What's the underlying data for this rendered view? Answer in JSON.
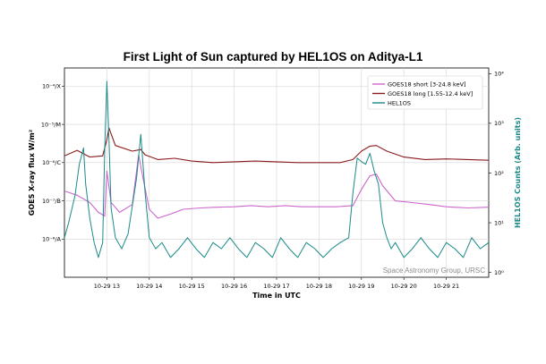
{
  "chart_data": {
    "type": "line",
    "title": "First Light of Sun captured by HEL1OS on Aditya-L1",
    "xlabel": "Time in UTC",
    "ylabel_left": "GOES X-ray flux W/m²",
    "ylabel_right": "HEL1OS Counts (Arb. units)",
    "x_ticks": [
      "10-29 13",
      "10-29 14",
      "10-29 15",
      "10-29 16",
      "10-29 17",
      "10-29 18",
      "10-29 19",
      "10-29 20",
      "10-29 21"
    ],
    "xlim_hours": [
      12.0,
      22.0
    ],
    "left_axis": {
      "scale": "log",
      "ylim": [
        1e-09,
        0.0003
      ],
      "ticks": [
        {
          "value": 0.0001,
          "label": "10⁻⁴/X"
        },
        {
          "value": 1e-05,
          "label": "10⁻⁵/M"
        },
        {
          "value": 1e-06,
          "label": "10⁻⁶/C"
        },
        {
          "value": 1e-07,
          "label": "10⁻⁷/B"
        },
        {
          "value": 1e-08,
          "label": "10⁻⁸/A"
        }
      ]
    },
    "right_axis": {
      "scale": "log",
      "ylim": [
        0.8,
        13000
      ],
      "ticks": [
        {
          "value": 1,
          "label": "10⁰"
        },
        {
          "value": 10,
          "label": "10¹"
        },
        {
          "value": 100,
          "label": "10²"
        },
        {
          "value": 1000,
          "label": "10³"
        },
        {
          "value": 10000,
          "label": "10⁴"
        }
      ]
    },
    "legend_position": "top-right",
    "grid": true,
    "series": [
      {
        "name": "GOES18 short  [3-24.8 keV]",
        "color": "#cc66cc",
        "axis": "left",
        "x": [
          12.0,
          12.3,
          12.6,
          12.8,
          12.95,
          13.0,
          13.1,
          13.3,
          13.6,
          13.75,
          13.85,
          14.0,
          14.2,
          14.5,
          14.8,
          15.2,
          15.6,
          16.0,
          16.4,
          16.8,
          17.2,
          17.6,
          18.0,
          18.4,
          18.8,
          19.0,
          19.2,
          19.35,
          19.5,
          19.8,
          20.2,
          20.6,
          21.0,
          21.5,
          22.0
        ],
        "y": [
          1.8e-07,
          1.4e-07,
          9e-08,
          5e-08,
          4e-08,
          6e-07,
          9e-08,
          5e-08,
          8e-08,
          1.6e-06,
          4e-07,
          6e-08,
          3.5e-08,
          4.5e-08,
          6e-08,
          6.5e-08,
          6.8e-08,
          7e-08,
          7.5e-08,
          7e-08,
          7.5e-08,
          7e-08,
          7e-08,
          7e-08,
          7.5e-08,
          2e-07,
          4.5e-07,
          5e-07,
          2.5e-07,
          1e-07,
          9e-08,
          8e-08,
          7e-08,
          6.5e-08,
          6.8e-08
        ]
      },
      {
        "name": "GOES18 long  [1.55-12.4 keV]",
        "color": "#8b1a1a",
        "axis": "left",
        "x": [
          12.0,
          12.3,
          12.6,
          12.9,
          13.0,
          13.05,
          13.2,
          13.6,
          13.8,
          13.9,
          14.2,
          14.6,
          15.0,
          15.5,
          16.0,
          16.5,
          17.0,
          17.5,
          18.0,
          18.5,
          18.8,
          19.0,
          19.2,
          19.35,
          19.6,
          20.0,
          20.5,
          21.0,
          21.5,
          22.0
        ],
        "y": [
          1.5e-06,
          2.1e-06,
          1.4e-06,
          1.5e-06,
          4e-06,
          8e-06,
          2.8e-06,
          2e-06,
          2.2e-06,
          1.6e-06,
          1.2e-06,
          1.3e-06,
          1.1e-06,
          1e-06,
          1.05e-06,
          1.1e-06,
          1.05e-06,
          1e-06,
          1e-06,
          1e-06,
          1.2e-06,
          2e-06,
          2.7e-06,
          2.8e-06,
          2e-06,
          1.4e-06,
          1.2e-06,
          1.25e-06,
          1.2e-06,
          1.15e-06
        ]
      },
      {
        "name": "HEL1OS",
        "color": "#1a8a8a",
        "axis": "right",
        "x": [
          12.0,
          12.1,
          12.25,
          12.35,
          12.45,
          12.5,
          12.6,
          12.7,
          12.8,
          12.9,
          12.95,
          13.0,
          13.05,
          13.1,
          13.2,
          13.35,
          13.5,
          13.7,
          13.8,
          13.9,
          14.0,
          14.15,
          14.3,
          14.5,
          14.7,
          14.9,
          15.1,
          15.3,
          15.5,
          15.7,
          15.9,
          16.1,
          16.3,
          16.5,
          16.7,
          16.9,
          17.1,
          17.3,
          17.5,
          17.7,
          17.9,
          18.1,
          18.3,
          18.5,
          18.7,
          18.8,
          18.9,
          19.0,
          19.1,
          19.2,
          19.3,
          19.4,
          19.5,
          19.6,
          19.7,
          19.8,
          20.0,
          20.2,
          20.4,
          20.6,
          20.8,
          21.0,
          21.2,
          21.4,
          21.6,
          21.8,
          22.0
        ],
        "y": [
          5,
          10,
          35,
          150,
          320,
          60,
          12,
          4,
          2,
          4,
          300,
          7000,
          450,
          20,
          5,
          3,
          6,
          80,
          600,
          40,
          5,
          3,
          4,
          2,
          3,
          5,
          3,
          2,
          4,
          3,
          5,
          3,
          2,
          4,
          3,
          2,
          5,
          3,
          2,
          4,
          3,
          2,
          3,
          4,
          5,
          40,
          200,
          170,
          150,
          250,
          110,
          60,
          10,
          5,
          3,
          4,
          2,
          3,
          5,
          3,
          2,
          4,
          3,
          2,
          5,
          3,
          4
        ]
      }
    ],
    "annotations": [
      "Space Astronomy Group, URSC"
    ]
  }
}
